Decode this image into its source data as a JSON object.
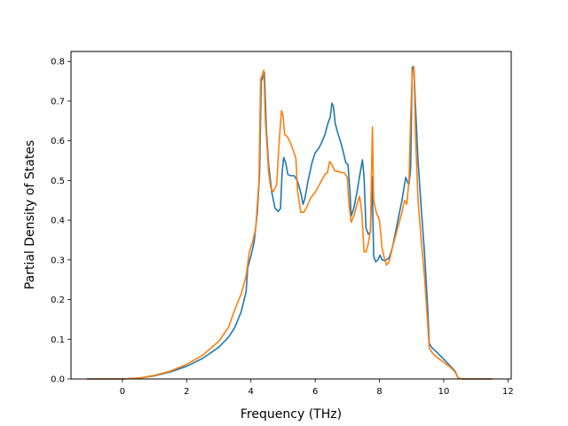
{
  "chart_data": {
    "type": "line",
    "title": "",
    "xlabel": "Frequency (THz)",
    "ylabel": "Partial Density of States",
    "xlim": [
      -1.6,
      12.1
    ],
    "ylim": [
      0,
      0.825
    ],
    "xticks": [
      0,
      2,
      4,
      6,
      8,
      10,
      12
    ],
    "yticks": [
      0.0,
      0.1,
      0.2,
      0.3,
      0.4,
      0.5,
      0.6,
      0.7,
      0.8
    ],
    "grid": false,
    "legend": "none",
    "series": [
      {
        "color": "#1f77b4",
        "points": [
          [
            -1.1,
            0.0
          ],
          [
            -0.5,
            0.0
          ],
          [
            0.0,
            0.0
          ],
          [
            0.5,
            0.002
          ],
          [
            1.0,
            0.008
          ],
          [
            1.5,
            0.018
          ],
          [
            2.0,
            0.032
          ],
          [
            2.5,
            0.052
          ],
          [
            3.0,
            0.08
          ],
          [
            3.3,
            0.105
          ],
          [
            3.5,
            0.13
          ],
          [
            3.7,
            0.17
          ],
          [
            3.85,
            0.22
          ],
          [
            3.9,
            0.28
          ],
          [
            4.0,
            0.31
          ],
          [
            4.1,
            0.345
          ],
          [
            4.2,
            0.42
          ],
          [
            4.27,
            0.52
          ],
          [
            4.32,
            0.75
          ],
          [
            4.38,
            0.762
          ],
          [
            4.42,
            0.772
          ],
          [
            4.48,
            0.63
          ],
          [
            4.55,
            0.54
          ],
          [
            4.65,
            0.47
          ],
          [
            4.75,
            0.43
          ],
          [
            4.85,
            0.422
          ],
          [
            4.92,
            0.43
          ],
          [
            4.97,
            0.52
          ],
          [
            5.02,
            0.558
          ],
          [
            5.08,
            0.545
          ],
          [
            5.15,
            0.515
          ],
          [
            5.25,
            0.512
          ],
          [
            5.35,
            0.512
          ],
          [
            5.45,
            0.498
          ],
          [
            5.55,
            0.47
          ],
          [
            5.62,
            0.44
          ],
          [
            5.68,
            0.455
          ],
          [
            5.78,
            0.5
          ],
          [
            5.9,
            0.545
          ],
          [
            6.0,
            0.57
          ],
          [
            6.1,
            0.58
          ],
          [
            6.2,
            0.595
          ],
          [
            6.3,
            0.615
          ],
          [
            6.4,
            0.645
          ],
          [
            6.47,
            0.66
          ],
          [
            6.52,
            0.695
          ],
          [
            6.57,
            0.685
          ],
          [
            6.62,
            0.645
          ],
          [
            6.7,
            0.62
          ],
          [
            6.8,
            0.595
          ],
          [
            6.88,
            0.57
          ],
          [
            6.95,
            0.545
          ],
          [
            7.02,
            0.54
          ],
          [
            7.08,
            0.475
          ],
          [
            7.12,
            0.41
          ],
          [
            7.2,
            0.43
          ],
          [
            7.3,
            0.47
          ],
          [
            7.4,
            0.52
          ],
          [
            7.47,
            0.552
          ],
          [
            7.52,
            0.51
          ],
          [
            7.58,
            0.38
          ],
          [
            7.65,
            0.365
          ],
          [
            7.72,
            0.37
          ],
          [
            7.77,
            0.51
          ],
          [
            7.82,
            0.31
          ],
          [
            7.88,
            0.295
          ],
          [
            7.95,
            0.3
          ],
          [
            8.02,
            0.312
          ],
          [
            8.08,
            0.3
          ],
          [
            8.18,
            0.298
          ],
          [
            8.3,
            0.305
          ],
          [
            8.4,
            0.33
          ],
          [
            8.5,
            0.37
          ],
          [
            8.6,
            0.41
          ],
          [
            8.7,
            0.45
          ],
          [
            8.78,
            0.49
          ],
          [
            8.82,
            0.508
          ],
          [
            8.88,
            0.495
          ],
          [
            8.92,
            0.49
          ],
          [
            8.97,
            0.53
          ],
          [
            9.02,
            0.785
          ],
          [
            9.07,
            0.787
          ],
          [
            9.12,
            0.69
          ],
          [
            9.2,
            0.55
          ],
          [
            9.3,
            0.43
          ],
          [
            9.4,
            0.32
          ],
          [
            9.5,
            0.18
          ],
          [
            9.55,
            0.09
          ],
          [
            9.62,
            0.08
          ],
          [
            9.8,
            0.066
          ],
          [
            10.0,
            0.05
          ],
          [
            10.2,
            0.033
          ],
          [
            10.35,
            0.02
          ],
          [
            10.45,
            0.002
          ],
          [
            10.6,
            0.0
          ],
          [
            11.0,
            0.0
          ],
          [
            11.5,
            0.0
          ]
        ]
      },
      {
        "color": "#ff7f0e",
        "points": [
          [
            -1.1,
            0.0
          ],
          [
            -0.5,
            0.0
          ],
          [
            0.0,
            0.0
          ],
          [
            0.5,
            0.002
          ],
          [
            1.0,
            0.009
          ],
          [
            1.5,
            0.02
          ],
          [
            2.0,
            0.037
          ],
          [
            2.5,
            0.06
          ],
          [
            3.0,
            0.095
          ],
          [
            3.3,
            0.13
          ],
          [
            3.5,
            0.175
          ],
          [
            3.7,
            0.215
          ],
          [
            3.85,
            0.26
          ],
          [
            3.95,
            0.32
          ],
          [
            4.05,
            0.345
          ],
          [
            4.15,
            0.38
          ],
          [
            4.25,
            0.5
          ],
          [
            4.3,
            0.755
          ],
          [
            4.35,
            0.765
          ],
          [
            4.4,
            0.778
          ],
          [
            4.45,
            0.65
          ],
          [
            4.55,
            0.52
          ],
          [
            4.62,
            0.48
          ],
          [
            4.7,
            0.472
          ],
          [
            4.8,
            0.49
          ],
          [
            4.88,
            0.6
          ],
          [
            4.95,
            0.676
          ],
          [
            5.0,
            0.662
          ],
          [
            5.05,
            0.615
          ],
          [
            5.12,
            0.612
          ],
          [
            5.2,
            0.6
          ],
          [
            5.3,
            0.58
          ],
          [
            5.4,
            0.555
          ],
          [
            5.45,
            0.475
          ],
          [
            5.55,
            0.42
          ],
          [
            5.65,
            0.42
          ],
          [
            5.75,
            0.435
          ],
          [
            5.85,
            0.455
          ],
          [
            6.0,
            0.47
          ],
          [
            6.1,
            0.485
          ],
          [
            6.2,
            0.5
          ],
          [
            6.3,
            0.515
          ],
          [
            6.38,
            0.52
          ],
          [
            6.45,
            0.548
          ],
          [
            6.52,
            0.54
          ],
          [
            6.6,
            0.525
          ],
          [
            6.7,
            0.523
          ],
          [
            6.8,
            0.52
          ],
          [
            6.9,
            0.52
          ],
          [
            7.0,
            0.508
          ],
          [
            7.05,
            0.44
          ],
          [
            7.12,
            0.395
          ],
          [
            7.2,
            0.41
          ],
          [
            7.3,
            0.44
          ],
          [
            7.38,
            0.46
          ],
          [
            7.45,
            0.42
          ],
          [
            7.52,
            0.32
          ],
          [
            7.58,
            0.32
          ],
          [
            7.65,
            0.34
          ],
          [
            7.72,
            0.375
          ],
          [
            7.78,
            0.635
          ],
          [
            7.82,
            0.45
          ],
          [
            7.9,
            0.42
          ],
          [
            8.0,
            0.4
          ],
          [
            8.08,
            0.33
          ],
          [
            8.15,
            0.305
          ],
          [
            8.22,
            0.287
          ],
          [
            8.3,
            0.295
          ],
          [
            8.4,
            0.33
          ],
          [
            8.5,
            0.36
          ],
          [
            8.6,
            0.39
          ],
          [
            8.7,
            0.42
          ],
          [
            8.78,
            0.45
          ],
          [
            8.85,
            0.44
          ],
          [
            8.92,
            0.5
          ],
          [
            8.97,
            0.66
          ],
          [
            9.02,
            0.77
          ],
          [
            9.07,
            0.787
          ],
          [
            9.12,
            0.62
          ],
          [
            9.2,
            0.45
          ],
          [
            9.3,
            0.35
          ],
          [
            9.4,
            0.26
          ],
          [
            9.5,
            0.14
          ],
          [
            9.55,
            0.078
          ],
          [
            9.65,
            0.065
          ],
          [
            9.8,
            0.054
          ],
          [
            10.0,
            0.042
          ],
          [
            10.2,
            0.03
          ],
          [
            10.35,
            0.018
          ],
          [
            10.45,
            0.002
          ],
          [
            10.6,
            0.0
          ],
          [
            11.0,
            0.0
          ],
          [
            11.5,
            0.0
          ]
        ]
      }
    ]
  }
}
